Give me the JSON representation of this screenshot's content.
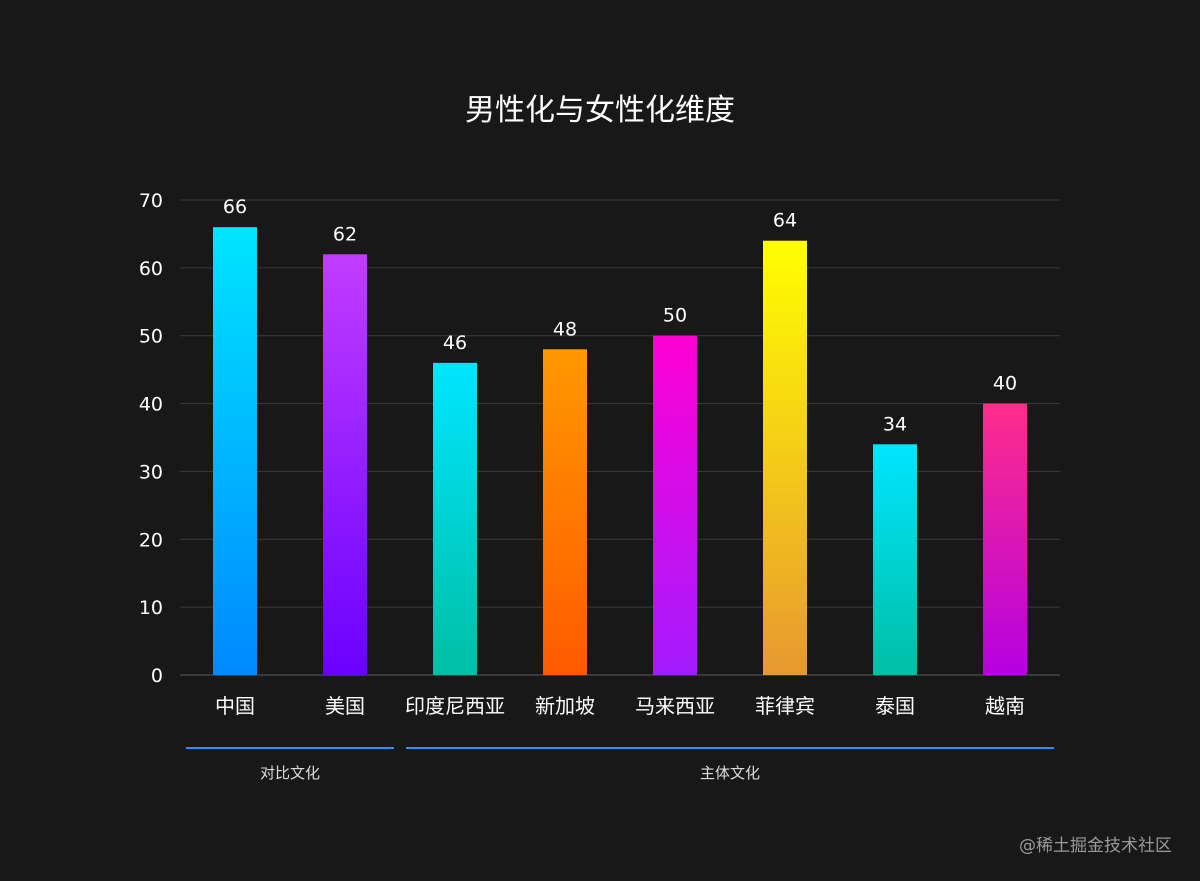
{
  "chart_data": {
    "type": "bar",
    "title": "男性化与女性化维度",
    "categories": [
      "中国",
      "美国",
      "印度尼西亚",
      "新加坡",
      "马来西亚",
      "菲律宾",
      "泰国",
      "越南"
    ],
    "values": [
      66,
      62,
      46,
      48,
      50,
      64,
      34,
      40
    ],
    "ylim": [
      0,
      70
    ],
    "yticks": [
      0,
      10,
      20,
      30,
      40,
      50,
      60,
      70
    ],
    "grid": true,
    "colors": [
      [
        "#00e5ff",
        "#0088ff"
      ],
      [
        "#c13cff",
        "#6a00ff"
      ],
      [
        "#00e5ff",
        "#00bfa5"
      ],
      [
        "#ff9800",
        "#ff5a00"
      ],
      [
        "#ff00d4",
        "#a31bff"
      ],
      [
        "#ffff00",
        "#e89830"
      ],
      [
        "#00e5ff",
        "#00bfa5"
      ],
      [
        "#ff2d8a",
        "#b400e0"
      ]
    ],
    "groups": [
      {
        "label": "对比文化",
        "from": 0,
        "to": 1
      },
      {
        "label": "主体文化",
        "from": 2,
        "to": 7
      }
    ],
    "group_line_color": "#2f8cff"
  },
  "watermark": "@稀土掘金技术社区"
}
